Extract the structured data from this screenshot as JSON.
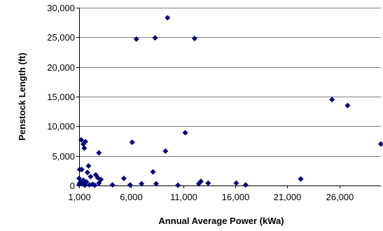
{
  "chart_data": {
    "type": "scatter",
    "title": "",
    "xlabel": "Annual Average Power (kWa)",
    "ylabel": "Penstock Length (ft)",
    "xlim": [
      1000,
      30000
    ],
    "ylim": [
      0,
      30000
    ],
    "xticks": [
      1000,
      6000,
      11000,
      16000,
      21000,
      26000
    ],
    "yticks": [
      0,
      5000,
      10000,
      15000,
      20000,
      25000,
      30000
    ],
    "xtick_labels": [
      "1,000",
      "6,000",
      "11,000",
      "16,000",
      "21,000",
      "26,000"
    ],
    "ytick_labels": [
      "0",
      "5,000",
      "10,000",
      "15,000",
      "20,000",
      "25,000",
      "30,000"
    ],
    "grid": "horizontal major gridlines",
    "legend": "none",
    "marker": "diamond",
    "colors": {
      "marker": "#00007f",
      "gridline": "#7f7f7f",
      "axis": "#000000"
    },
    "series": [
      {
        "points": [
          [
            9500,
            28300
          ],
          [
            8300,
            24900
          ],
          [
            6500,
            24700
          ],
          [
            12100,
            24800
          ],
          [
            25300,
            14500
          ],
          [
            26800,
            13500
          ],
          [
            30000,
            7000
          ],
          [
            11200,
            8900
          ],
          [
            9300,
            5800
          ],
          [
            6100,
            7300
          ],
          [
            8100,
            2300
          ],
          [
            22300,
            1100
          ],
          [
            1200,
            7700
          ],
          [
            1400,
            7000
          ],
          [
            1600,
            7400
          ],
          [
            1500,
            6300
          ],
          [
            2900,
            5500
          ],
          [
            1000,
            1200
          ],
          [
            1050,
            2700
          ],
          [
            1250,
            2700
          ],
          [
            1900,
            3300
          ],
          [
            1800,
            2200
          ],
          [
            2100,
            1500
          ],
          [
            2600,
            1800
          ],
          [
            2800,
            1300
          ],
          [
            3100,
            1000
          ],
          [
            5300,
            1200
          ],
          [
            1000,
            200
          ],
          [
            1100,
            500
          ],
          [
            1300,
            300
          ],
          [
            1400,
            900
          ],
          [
            1550,
            50
          ],
          [
            1700,
            600
          ],
          [
            2000,
            100
          ],
          [
            2300,
            200
          ],
          [
            2500,
            50
          ],
          [
            2900,
            400
          ],
          [
            4200,
            100
          ],
          [
            5900,
            100
          ],
          [
            7000,
            300
          ],
          [
            8400,
            300
          ],
          [
            10500,
            50
          ],
          [
            12500,
            300
          ],
          [
            12700,
            700
          ],
          [
            13400,
            400
          ],
          [
            16100,
            400
          ],
          [
            17000,
            100
          ]
        ]
      }
    ]
  }
}
